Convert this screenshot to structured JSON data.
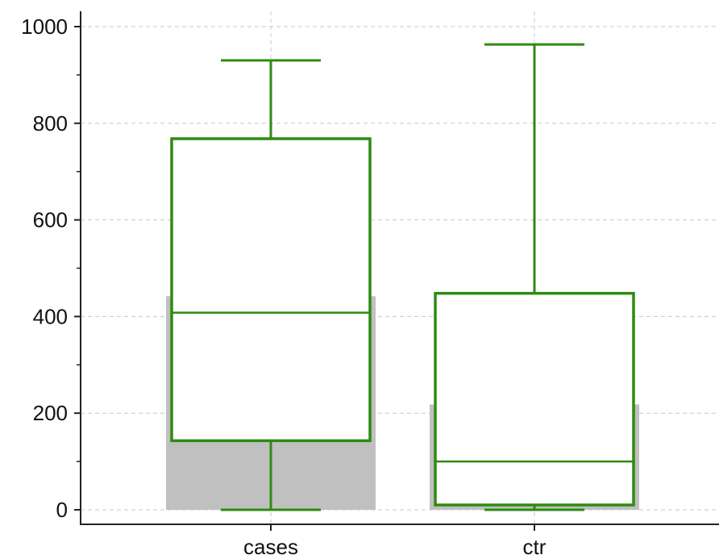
{
  "chart_data": {
    "type": "box",
    "title": "",
    "xlabel": "",
    "ylabel": "",
    "ylim": [
      -30,
      1035
    ],
    "y_ticks": [
      0,
      200,
      400,
      600,
      800,
      1000
    ],
    "y_tick_labels": [
      "0",
      "200",
      "400",
      "600",
      "800",
      "1000"
    ],
    "grid": true,
    "categories": [
      "cases",
      "ctr"
    ],
    "boxes": [
      {
        "category": "cases",
        "min": 0,
        "q1": 143,
        "median": 408,
        "q3": 768,
        "max": 930,
        "bar": 442
      },
      {
        "category": "ctr",
        "min": 0,
        "q1": 10,
        "median": 100,
        "q3": 448,
        "max": 963,
        "bar": 218
      }
    ],
    "colors": {
      "box": "#2e8b10",
      "bar": "#c0c0c0",
      "axis": "#222222",
      "grid": "#c8c8c8"
    }
  }
}
